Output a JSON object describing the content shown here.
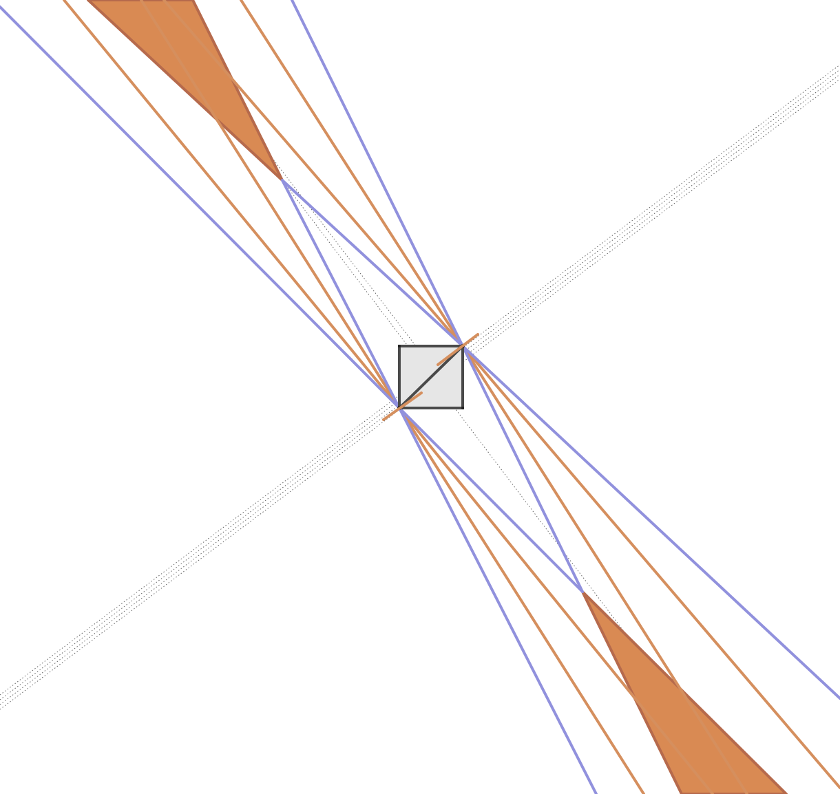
{
  "colors": {
    "background": "#ffffff",
    "blue_lines": "#9191dd",
    "orange_lines": "#d58f5e",
    "orange_fill": "#d98a53",
    "orange_fill_edge": "#b66a4c",
    "square_fill": "#e6e6e6",
    "square_edge": "#4a4a4a",
    "dotted": "#666666"
  },
  "labels": {}
}
